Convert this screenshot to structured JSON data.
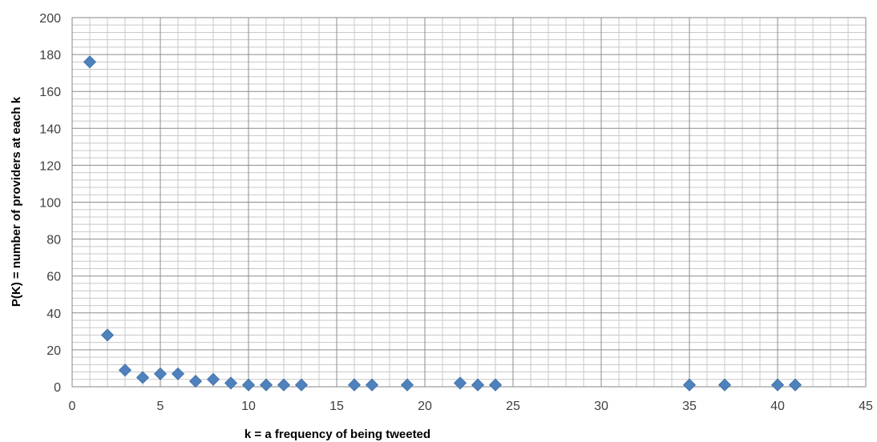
{
  "chart_data": {
    "type": "scatter",
    "title": "",
    "xlabel": "k = a frequency of being tweeted",
    "ylabel": "P(K) = number of providers at each k",
    "xlim": [
      0,
      45
    ],
    "ylim": [
      0,
      200
    ],
    "x_major_ticks": [
      0,
      5,
      10,
      15,
      20,
      25,
      30,
      35,
      40,
      45
    ],
    "y_major_ticks": [
      0,
      20,
      40,
      60,
      80,
      100,
      120,
      140,
      160,
      180,
      200
    ],
    "x_minor_step": 1,
    "y_minor_step": 4,
    "grid": true,
    "legend": "none",
    "marker": "diamond",
    "marker_color": "#4F81BD",
    "series": [
      {
        "points": [
          {
            "x": 1,
            "y": 176
          },
          {
            "x": 2,
            "y": 28
          },
          {
            "x": 3,
            "y": 9
          },
          {
            "x": 4,
            "y": 5
          },
          {
            "x": 5,
            "y": 7
          },
          {
            "x": 6,
            "y": 7
          },
          {
            "x": 7,
            "y": 3
          },
          {
            "x": 8,
            "y": 4
          },
          {
            "x": 9,
            "y": 2
          },
          {
            "x": 10,
            "y": 1
          },
          {
            "x": 11,
            "y": 1
          },
          {
            "x": 12,
            "y": 1
          },
          {
            "x": 13,
            "y": 1
          },
          {
            "x": 16,
            "y": 1
          },
          {
            "x": 17,
            "y": 1
          },
          {
            "x": 19,
            "y": 1
          },
          {
            "x": 22,
            "y": 2
          },
          {
            "x": 23,
            "y": 1
          },
          {
            "x": 24,
            "y": 1
          },
          {
            "x": 35,
            "y": 1
          },
          {
            "x": 37,
            "y": 1
          },
          {
            "x": 40,
            "y": 1
          },
          {
            "x": 41,
            "y": 1
          }
        ]
      }
    ]
  }
}
